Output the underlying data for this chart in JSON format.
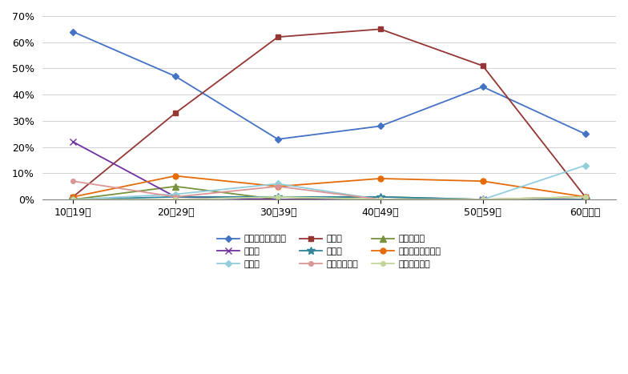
{
  "categories": [
    "10～19歳",
    "20～29歳",
    "30～39歳",
    "40～49歳",
    "50～59歳",
    "60歳以上"
  ],
  "series": [
    {
      "label": "就職・転職・転業",
      "color": "#4472C4",
      "marker": "D",
      "markersize": 4,
      "values": [
        64,
        47,
        23,
        28,
        43,
        25
      ]
    },
    {
      "label": "転　勤",
      "color": "#943634",
      "marker": "s",
      "markersize": 5,
      "values": [
        1,
        33,
        62,
        65,
        51,
        1
      ]
    },
    {
      "label": "退職・廃業",
      "color": "#76923C",
      "marker": "^",
      "markersize": 6,
      "values": [
        0,
        5,
        0,
        1,
        0,
        1
      ]
    },
    {
      "label": "就　学",
      "color": "#7030A0",
      "marker": "x",
      "markersize": 6,
      "values": [
        22,
        1,
        0,
        0,
        0,
        0
      ]
    },
    {
      "label": "卒　業",
      "color": "#31849B",
      "marker": "*",
      "markersize": 7,
      "values": [
        0,
        1,
        1,
        1,
        0,
        0
      ]
    },
    {
      "label": "結婚・離婚・縁組",
      "color": "#E36C09",
      "marker": "o",
      "markersize": 5,
      "values": [
        1,
        9,
        5,
        8,
        7,
        1
      ]
    },
    {
      "label": "住　宅",
      "color": "#92CDDC",
      "marker": "D",
      "markersize": 4,
      "values": [
        0,
        2,
        6,
        0,
        0,
        13
      ]
    },
    {
      "label": "交通の利便性",
      "color": "#D99694",
      "marker": "o",
      "markersize": 4,
      "values": [
        7,
        1,
        5,
        0,
        0,
        1
      ]
    },
    {
      "label": "生活の利便性",
      "color": "#C3D69B",
      "marker": "o",
      "markersize": 4,
      "values": [
        0,
        0,
        1,
        0,
        0,
        1
      ]
    }
  ],
  "ylim": [
    0,
    70
  ],
  "yticks": [
    0,
    10,
    20,
    30,
    40,
    50,
    60,
    70
  ],
  "ytick_labels": [
    "0%",
    "10%",
    "20%",
    "30%",
    "40%",
    "50%",
    "60%",
    "70%"
  ],
  "background_color": "#FFFFFF",
  "grid_color": "#BFBFBF",
  "legend_ncol": 3,
  "legend_order": [
    0,
    3,
    6,
    1,
    4,
    7,
    2,
    5,
    8
  ]
}
